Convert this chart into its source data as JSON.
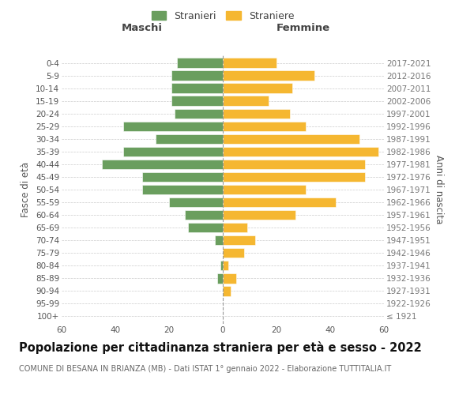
{
  "age_groups": [
    "100+",
    "95-99",
    "90-94",
    "85-89",
    "80-84",
    "75-79",
    "70-74",
    "65-69",
    "60-64",
    "55-59",
    "50-54",
    "45-49",
    "40-44",
    "35-39",
    "30-34",
    "25-29",
    "20-24",
    "15-19",
    "10-14",
    "5-9",
    "0-4"
  ],
  "birth_years": [
    "≤ 1921",
    "1922-1926",
    "1927-1931",
    "1932-1936",
    "1937-1941",
    "1942-1946",
    "1947-1951",
    "1952-1956",
    "1957-1961",
    "1962-1966",
    "1967-1971",
    "1972-1976",
    "1977-1981",
    "1982-1986",
    "1987-1991",
    "1992-1996",
    "1997-2001",
    "2002-2006",
    "2007-2011",
    "2012-2016",
    "2017-2021"
  ],
  "maschi": [
    0,
    0,
    0,
    2,
    1,
    0,
    3,
    13,
    14,
    20,
    30,
    30,
    45,
    37,
    25,
    37,
    18,
    19,
    19,
    19,
    17
  ],
  "femmine": [
    0,
    0,
    3,
    5,
    2,
    8,
    12,
    9,
    27,
    42,
    31,
    53,
    53,
    58,
    51,
    31,
    25,
    17,
    26,
    34,
    20
  ],
  "color_maschi": "#6a9e5e",
  "color_femmine": "#f5b731",
  "xlim": 60,
  "title": "Popolazione per cittadinanza straniera per età e sesso - 2022",
  "subtitle": "COMUNE DI BESANA IN BRIANZA (MB) - Dati ISTAT 1° gennaio 2022 - Elaborazione TUTTITALIA.IT",
  "ylabel_left": "Fasce di età",
  "ylabel_right": "Anni di nascita",
  "label_maschi": "Stranieri",
  "label_femmine": "Straniere",
  "header_left": "Maschi",
  "header_right": "Femmine",
  "bg_color": "#ffffff",
  "grid_color": "#cccccc",
  "title_fontsize": 10.5,
  "subtitle_fontsize": 7.0,
  "axis_fontsize": 7.5,
  "tick_fontsize": 7.5
}
